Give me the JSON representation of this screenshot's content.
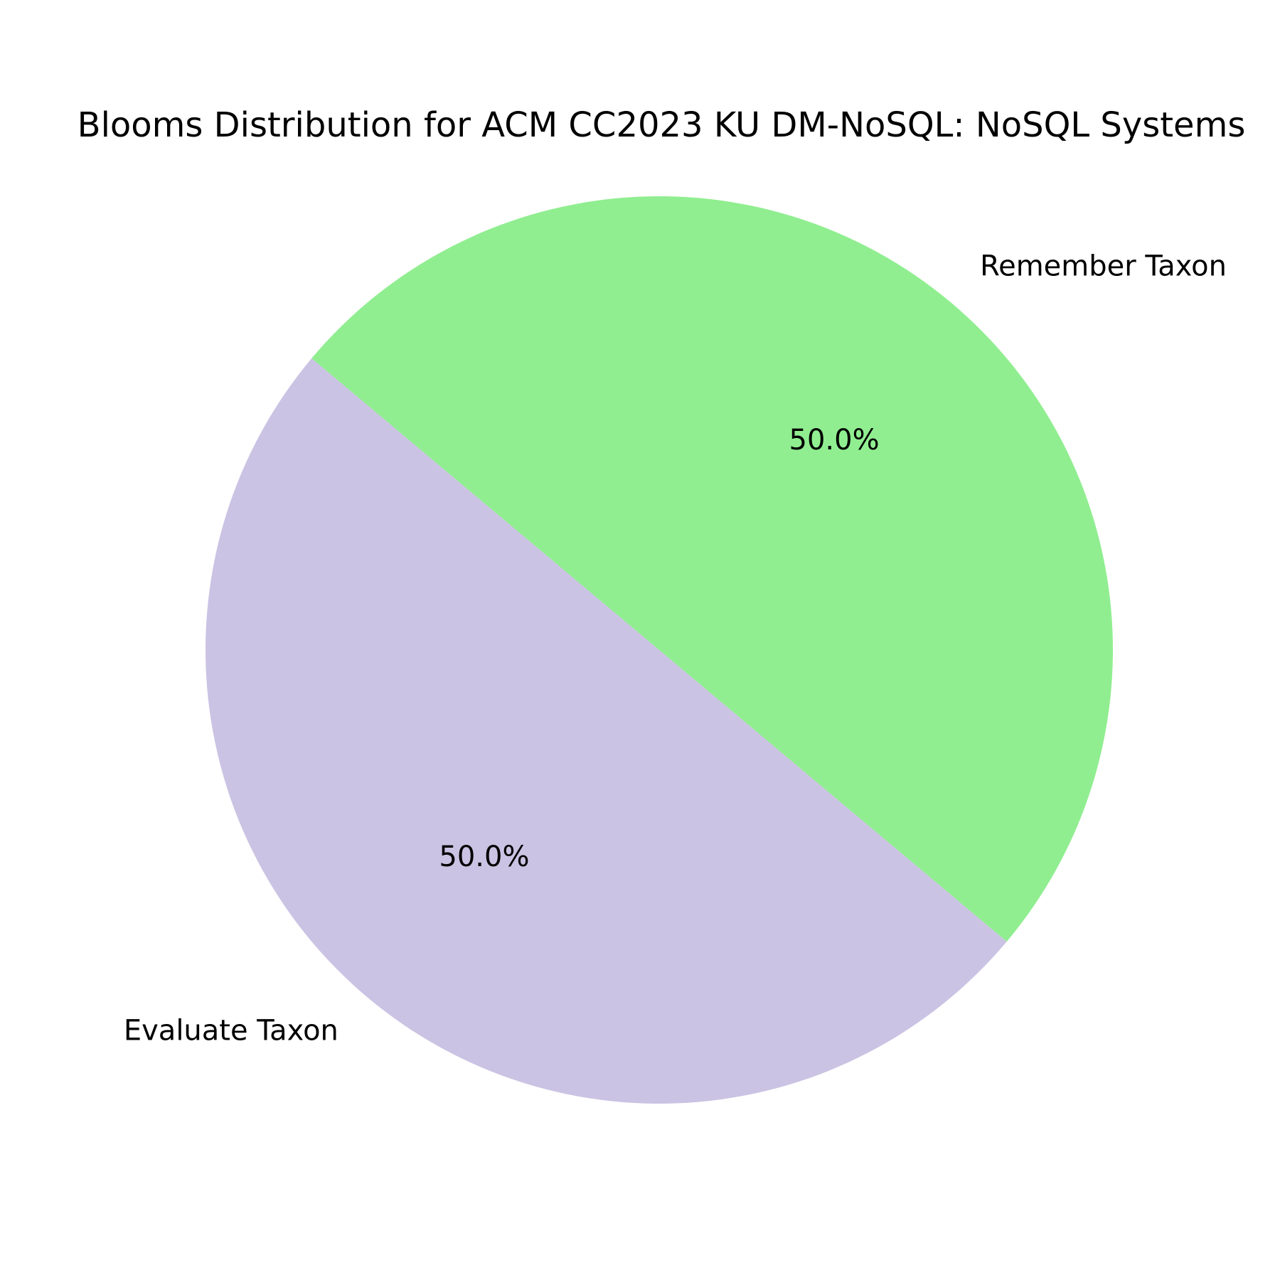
{
  "chart_data": {
    "type": "pie",
    "title": "Blooms Distribution for ACM CC2023 KU DM-NoSQL: NoSQL Systems",
    "categories": [
      "Evaluate Taxon",
      "Remember Taxon"
    ],
    "values": [
      50.0,
      50.0
    ],
    "percent_labels": [
      "50.0%",
      "50.0%"
    ],
    "colors": [
      "#cbc3e3",
      "#90ee90"
    ],
    "start_angle_deg": 140,
    "direction": "counterclockwise",
    "legend": "none"
  }
}
